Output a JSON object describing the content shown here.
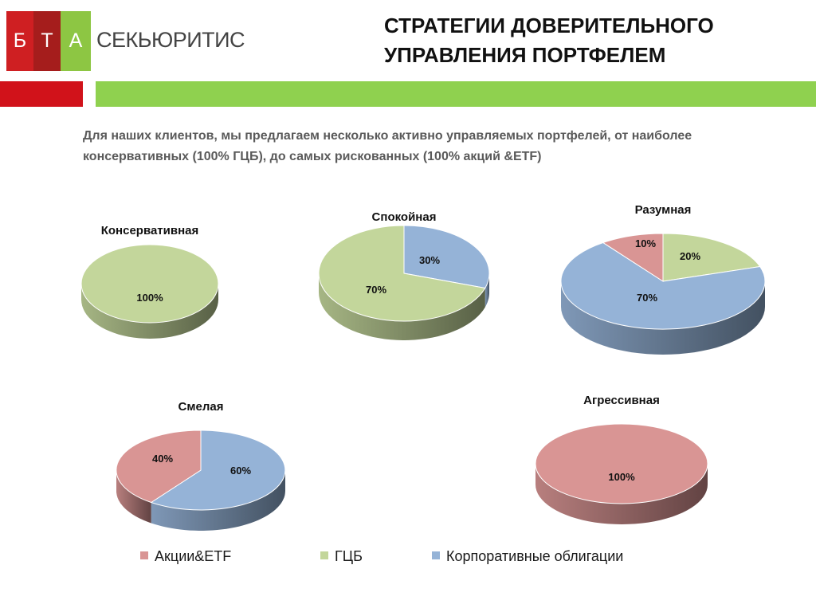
{
  "logo": {
    "letter_1": "Б",
    "letter_2": "Т",
    "letter_3": "А",
    "name": "СЕКЬЮРИТИС"
  },
  "slide": {
    "title_line_1": "СТРАТЕГИИ ДОВЕРИТЕЛЬНОГО",
    "title_line_2": "УПРАВЛЕНИЯ ПОРТФЕЛЕМ",
    "intro_line_1": "Для наших клиентов, мы предлагаем несколько активно управляемых портфелей, от наиболее",
    "intro_line_2": "консервативных (100% ГЦБ), до самых рискованных (100% акций &ETF)"
  },
  "colors": {
    "logo_red": "#cf1f22",
    "logo_dark_red": "#a51d1c",
    "logo_green": "#8dc643",
    "accent_red": "#d1121a",
    "accent_green": "#8fd14f"
  },
  "legend": [
    {
      "label": "Акции&ETF",
      "color": "#d99594"
    },
    {
      "label": "ГЦБ",
      "color": "#c3d69b"
    },
    {
      "label": "Корпоративные облигации",
      "color": "#95b3d7"
    }
  ],
  "chart_data": [
    {
      "type": "pie",
      "title": "Консервативная",
      "slices": [
        {
          "series": "ГЦБ",
          "value": 100,
          "label": "100%"
        }
      ]
    },
    {
      "type": "pie",
      "title": "Спокойная",
      "slices": [
        {
          "series": "Корпоративные облигации",
          "value": 30,
          "label": "30%"
        },
        {
          "series": "ГЦБ",
          "value": 70,
          "label": "70%"
        }
      ]
    },
    {
      "type": "pie",
      "title": "Разумная",
      "slices": [
        {
          "series": "ГЦБ",
          "value": 20,
          "label": "20%"
        },
        {
          "series": "Корпоративные облигации",
          "value": 70,
          "label": "70%"
        },
        {
          "series": "Акции&ETF",
          "value": 10,
          "label": "10%"
        }
      ]
    },
    {
      "type": "pie",
      "title": "Смелая",
      "slices": [
        {
          "series": "Корпоративные облигации",
          "value": 60,
          "label": "60%"
        },
        {
          "series": "Акции&ETF",
          "value": 40,
          "label": "40%"
        }
      ]
    },
    {
      "type": "pie",
      "title": "Агрессивная",
      "slices": [
        {
          "series": "Акции&ETF",
          "value": 100,
          "label": "100%"
        }
      ]
    }
  ]
}
